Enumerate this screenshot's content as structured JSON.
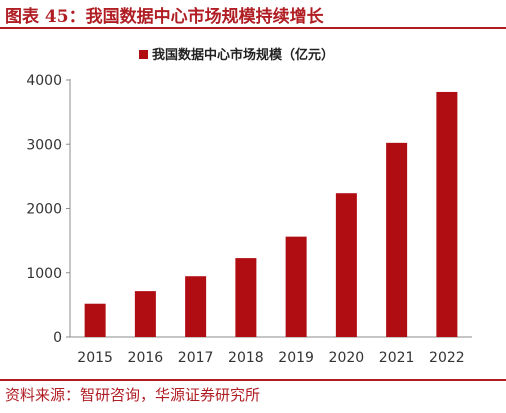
{
  "figure": {
    "title": "图表 45：我国数据中心市场规模持续增长",
    "source": "资料来源：智研咨询，华源证券研究所"
  },
  "chart_data": {
    "type": "bar",
    "categories": [
      "2015",
      "2016",
      "2017",
      "2018",
      "2019",
      "2020",
      "2021",
      "2022"
    ],
    "series": [
      {
        "name": "我国数据中心市场规模（亿元）",
        "color": "#b00d13",
        "values": [
          518,
          714,
          946,
          1228,
          1562,
          2238,
          3022,
          3814
        ]
      }
    ],
    "ylim": [
      0,
      4000
    ],
    "yticks": [
      0,
      1000,
      2000,
      3000,
      4000
    ],
    "grid": false,
    "legend_position": "top-center"
  }
}
